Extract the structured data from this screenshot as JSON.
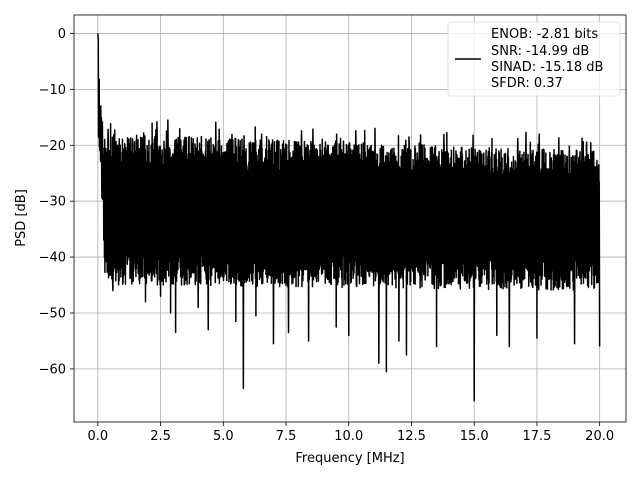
{
  "chart_data": {
    "type": "line",
    "xlabel": "Frequency [MHz]",
    "ylabel": "PSD [dB]",
    "xlim": [
      -0.95,
      21.05
    ],
    "ylim": [
      -69.5,
      3.3
    ],
    "xticks": [
      0.0,
      2.5,
      5.0,
      7.5,
      10.0,
      12.5,
      15.0,
      17.5,
      20.0
    ],
    "xtick_labels": [
      "0.0",
      "2.5",
      "5.0",
      "7.5",
      "10.0",
      "12.5",
      "15.0",
      "17.5",
      "20.0"
    ],
    "yticks": [
      0,
      -10,
      -20,
      -30,
      -40,
      -50,
      -60
    ],
    "ytick_labels": [
      "0",
      "−10",
      "−20",
      "−30",
      "−40",
      "−50",
      "−60"
    ],
    "grid": true,
    "legend_position": "top-right",
    "line_color": "#000000",
    "series": [
      {
        "legend_lines": [
          "ENOB: -2.81 bits",
          "SNR: -14.99 dB",
          "SINAD: -15.18 dB",
          "SFDR: 0.37"
        ],
        "x_range": [
          0,
          20
        ],
        "peak": {
          "x": 0.0,
          "y": 0.0
        },
        "approx_upper_envelope_db": -20,
        "approx_lower_envelope_db": -45,
        "notable_minima": [
          {
            "x": 0.6,
            "y": -46.0
          },
          {
            "x": 1.0,
            "y": -44.5
          },
          {
            "x": 1.9,
            "y": -48.0
          },
          {
            "x": 2.5,
            "y": -47.0
          },
          {
            "x": 2.9,
            "y": -50.0
          },
          {
            "x": 3.1,
            "y": -53.5
          },
          {
            "x": 4.0,
            "y": -49.0
          },
          {
            "x": 4.4,
            "y": -53.0
          },
          {
            "x": 5.5,
            "y": -51.5
          },
          {
            "x": 5.8,
            "y": -63.5
          },
          {
            "x": 6.3,
            "y": -50.5
          },
          {
            "x": 7.0,
            "y": -55.5
          },
          {
            "x": 7.6,
            "y": -53.5
          },
          {
            "x": 8.4,
            "y": -55.0
          },
          {
            "x": 9.5,
            "y": -52.5
          },
          {
            "x": 10.0,
            "y": -54.0
          },
          {
            "x": 11.2,
            "y": -59.0
          },
          {
            "x": 11.5,
            "y": -60.5
          },
          {
            "x": 12.0,
            "y": -55.0
          },
          {
            "x": 12.3,
            "y": -57.5
          },
          {
            "x": 13.5,
            "y": -56.0
          },
          {
            "x": 15.0,
            "y": -65.7
          },
          {
            "x": 15.9,
            "y": -54.0
          },
          {
            "x": 16.4,
            "y": -56.0
          },
          {
            "x": 17.5,
            "y": -54.5
          },
          {
            "x": 19.0,
            "y": -55.5
          },
          {
            "x": 20.0,
            "y": -56.0
          }
        ]
      }
    ]
  }
}
